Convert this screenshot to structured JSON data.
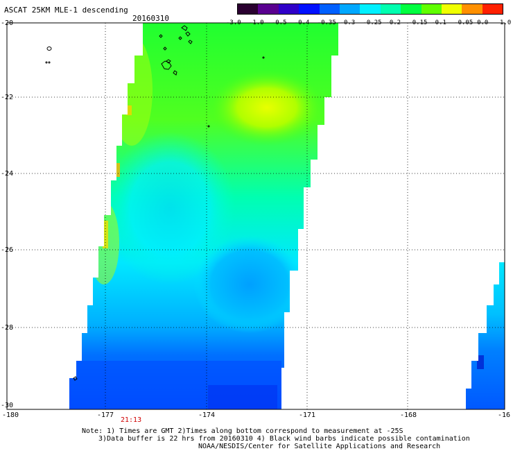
{
  "header": {
    "title": "ASCAT 25KM MLE-1 descending",
    "date": "20160310"
  },
  "colorbar": {
    "ticks": [
      "-3.0",
      "-1.0",
      "-0.5",
      "-0.4",
      "-0.35",
      "-0.3",
      "-0.25",
      "-0.2",
      "-0.15",
      "-0.1",
      "-0.05",
      "0.0",
      "1.0"
    ],
    "colors": [
      "#2a0030",
      "#5a0090",
      "#3000c8",
      "#0010ff",
      "#0060ff",
      "#00a8ff",
      "#00f0ff",
      "#00ffb0",
      "#00ff40",
      "#60ff00",
      "#f0ff00",
      "#ff9000",
      "#ff2000"
    ]
  },
  "axes": {
    "lat_labels": [
      "-20",
      "-22",
      "-24",
      "-26",
      "-28",
      "-30"
    ],
    "lon_labels": [
      "-180",
      "-177",
      "-174",
      "-171",
      "-168",
      "-16"
    ]
  },
  "pass_time": "21:13",
  "notes": {
    "line1": "Note: 1) Times are GMT 2)Times along bottom correspond to measurement at -25S",
    "line2": "3)Data buffer is 22 hrs from 20160310 4) Black wind barbs indicate possible contamination",
    "line3": "NOAA/NESDIS/Center for Satellite Applications and Research"
  },
  "swath_colors": {
    "blue": "#0050ff",
    "dark_blue": "#0028e8",
    "light_blue": "#00a0ff",
    "cyan": "#00e8ff",
    "aqua": "#00ffd0",
    "green": "#00ff60",
    "lime": "#40ff20",
    "yellow_green": "#a0ff00",
    "yellow": "#f0ff00",
    "orange": "#ff9000"
  }
}
